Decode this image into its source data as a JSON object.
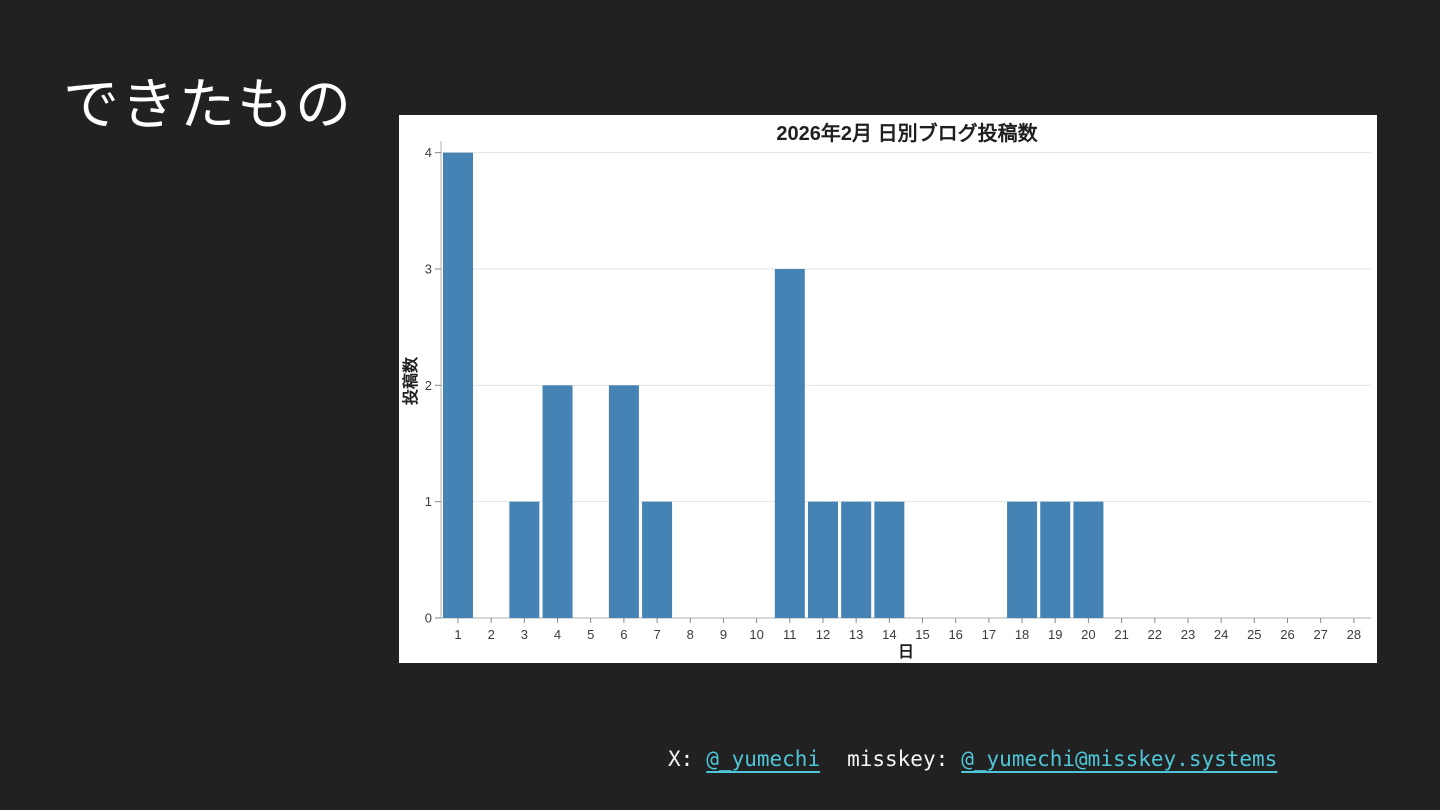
{
  "slide": {
    "title": "できたもの",
    "background_color": "#212121"
  },
  "chart_data": {
    "type": "bar",
    "title": "2026年2月 日別ブログ投稿数",
    "xlabel": "日",
    "ylabel": "投稿数",
    "categories": [
      1,
      2,
      3,
      4,
      5,
      6,
      7,
      8,
      9,
      10,
      11,
      12,
      13,
      14,
      15,
      16,
      17,
      18,
      19,
      20,
      21,
      22,
      23,
      24,
      25,
      26,
      27,
      28
    ],
    "values": [
      4,
      0,
      1,
      2,
      0,
      2,
      1,
      0,
      0,
      0,
      3,
      1,
      1,
      1,
      0,
      0,
      0,
      1,
      1,
      1,
      0,
      0,
      0,
      0,
      0,
      0,
      0,
      0
    ],
    "yticks": [
      0,
      1,
      2,
      3,
      4
    ],
    "ylim": [
      0,
      4.1
    ],
    "grid": true,
    "legend": false,
    "bar_color": "#4583B4",
    "plot_background": "#ffffff",
    "grid_color": "#e3e3e3",
    "spine_color": "#b0b0b0",
    "tick_color": "#888888",
    "tick_label_color": "#3c3c3c",
    "text_color": "#1f1f1f"
  },
  "footer": {
    "x_label": "X:",
    "x_link": "@_yumechi",
    "misskey_label": "misskey:",
    "misskey_link": "@_yumechi@misskey.systems",
    "link_color": "#4EC6D8"
  }
}
